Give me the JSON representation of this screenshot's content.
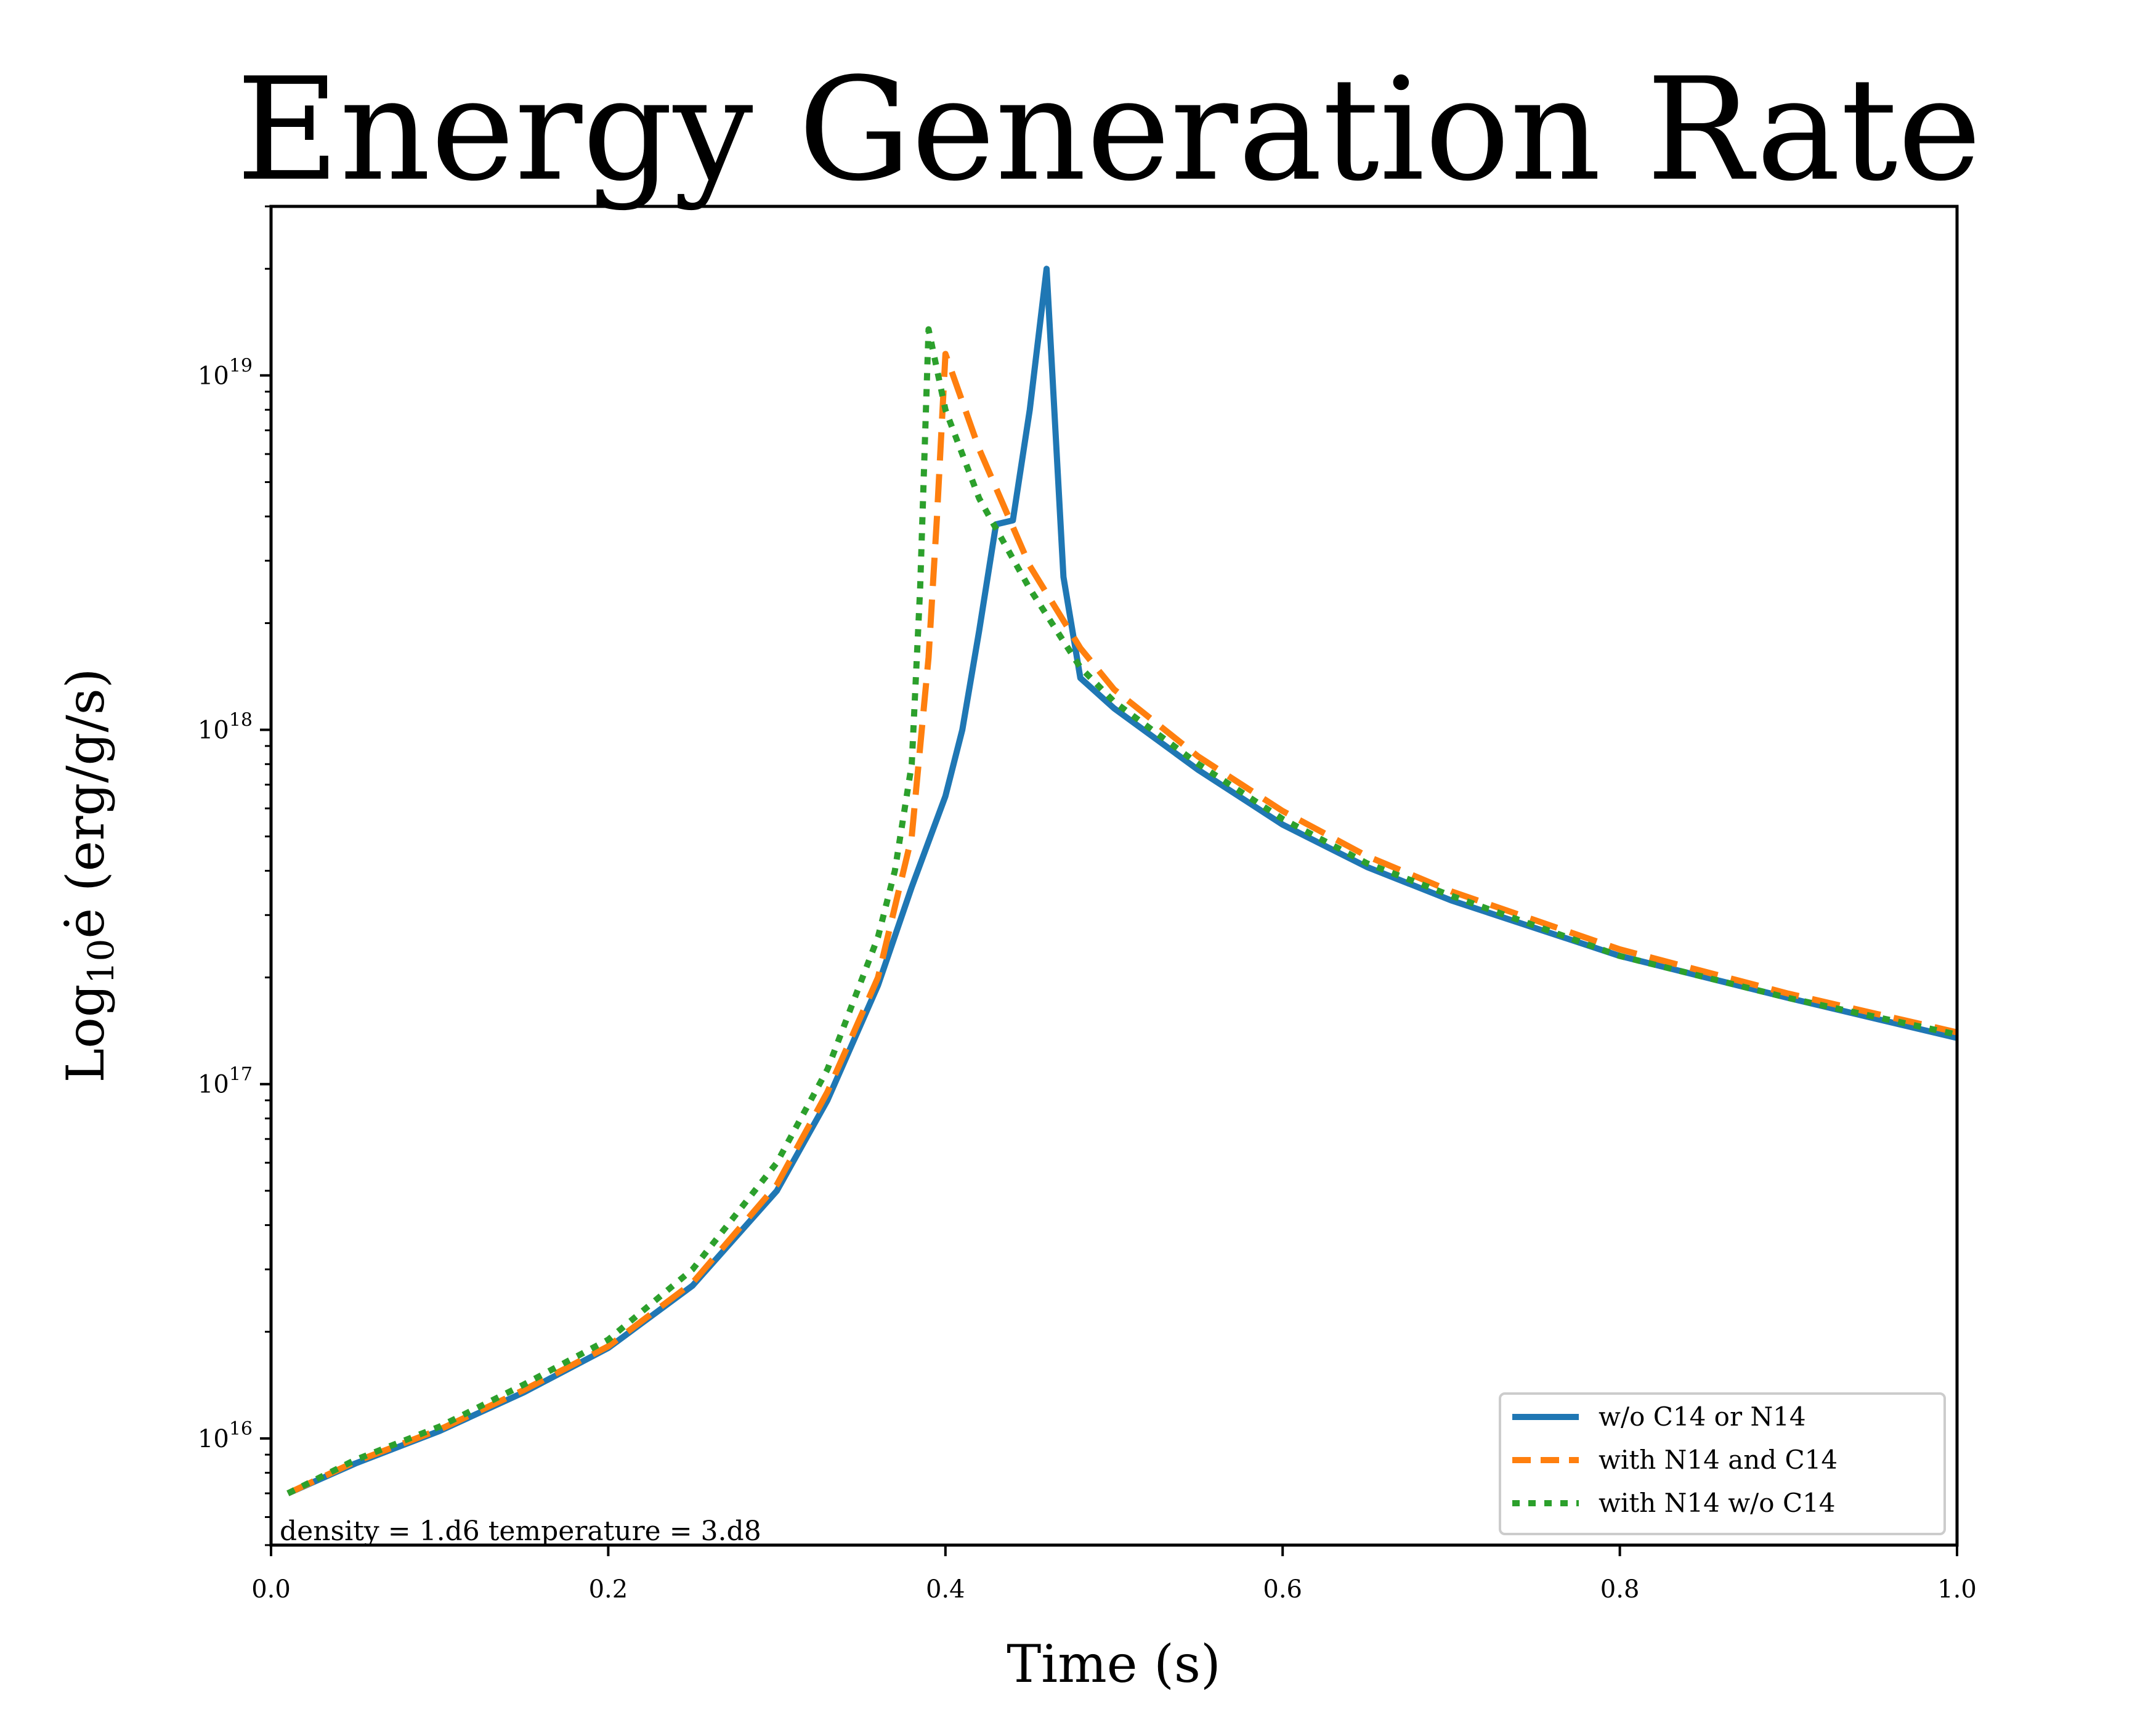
{
  "chart_data": {
    "type": "line",
    "title": "Energy Generation Rate",
    "xlabel": "Time (s)",
    "ylabel_main": "Log",
    "ylabel_sub": "10",
    "ylabel_rest": "ė (erg/g/s)",
    "xlim": [
      0.0,
      1.0
    ],
    "ylim": [
      5000000000000000.0,
      3e+19
    ],
    "yscale": "log",
    "grid": false,
    "legend_position": "lower-right",
    "annotation": "density = 1.d6 temperature = 3.d8",
    "x_ticks": [
      {
        "value": 0.0,
        "label": "0.0"
      },
      {
        "value": 0.2,
        "label": "0.2"
      },
      {
        "value": 0.4,
        "label": "0.4"
      },
      {
        "value": 0.6,
        "label": "0.6"
      },
      {
        "value": 0.8,
        "label": "0.8"
      },
      {
        "value": 1.0,
        "label": "1.0"
      }
    ],
    "y_ticks": [
      {
        "exp": 16,
        "base": "10",
        "sup": "16"
      },
      {
        "exp": 17,
        "base": "10",
        "sup": "17"
      },
      {
        "exp": 18,
        "base": "10",
        "sup": "18"
      },
      {
        "exp": 19,
        "base": "10",
        "sup": "19"
      }
    ],
    "series": [
      {
        "name": "w/o C14 or N14",
        "color": "#1f77b4",
        "style": "solid",
        "x": [
          0.01,
          0.05,
          0.1,
          0.15,
          0.2,
          0.25,
          0.3,
          0.33,
          0.36,
          0.38,
          0.4,
          0.41,
          0.42,
          0.43,
          0.44,
          0.45,
          0.46,
          0.47,
          0.48,
          0.5,
          0.55,
          0.6,
          0.65,
          0.7,
          0.8,
          0.9,
          1.0
        ],
        "y": [
          7000000000000000.0,
          8500000000000000.0,
          1.05e+16,
          1.35e+16,
          1.8e+16,
          2.7e+16,
          5e+16,
          9e+16,
          1.9e+17,
          3.6e+17,
          6.5e+17,
          1e+18,
          1.9e+18,
          3.8e+18,
          3.9e+18,
          8e+18,
          2e+19,
          2.7e+18,
          1.4e+18,
          1.15e+18,
          7.7e+17,
          5.4e+17,
          4.1e+17,
          3.3e+17,
          2.3e+17,
          1.75e+17,
          1.35e+17
        ]
      },
      {
        "name": "with N14 and C14",
        "color": "#ff7f0e",
        "style": "dashed",
        "x": [
          0.01,
          0.05,
          0.1,
          0.15,
          0.2,
          0.25,
          0.3,
          0.33,
          0.36,
          0.38,
          0.39,
          0.395,
          0.4,
          0.42,
          0.45,
          0.48,
          0.5,
          0.55,
          0.6,
          0.65,
          0.7,
          0.8,
          0.9,
          1.0
        ],
        "y": [
          7000000000000000.0,
          8600000000000000.0,
          1.06e+16,
          1.37e+16,
          1.82e+16,
          2.75e+16,
          5.2e+16,
          9.5e+16,
          2e+17,
          5e+17,
          1.6e+18,
          4e+18,
          1.15e+19,
          6.2e+18,
          2.9e+18,
          1.7e+18,
          1.3e+18,
          8.4e+17,
          5.9e+17,
          4.4e+17,
          3.5e+17,
          2.4e+17,
          1.8e+17,
          1.4e+17
        ]
      },
      {
        "name": "with N14 w/o C14",
        "color": "#2ca02c",
        "style": "dotted",
        "x": [
          0.01,
          0.05,
          0.1,
          0.15,
          0.2,
          0.25,
          0.3,
          0.33,
          0.36,
          0.37,
          0.38,
          0.385,
          0.39,
          0.4,
          0.42,
          0.45,
          0.48,
          0.5,
          0.55,
          0.6,
          0.65,
          0.7,
          0.8,
          0.9,
          1.0
        ],
        "y": [
          7000000000000000.0,
          8700000000000000.0,
          1.08e+16,
          1.42e+16,
          1.9e+16,
          3e+16,
          6e+16,
          1.1e+17,
          2.6e+17,
          4e+17,
          8e+17,
          2.5e+18,
          1.35e+19,
          8e+18,
          4.5e+18,
          2.5e+18,
          1.5e+18,
          1.2e+18,
          8e+17,
          5.6e+17,
          4.2e+17,
          3.4e+17,
          2.3e+17,
          1.75e+17,
          1.38e+17
        ]
      }
    ]
  }
}
